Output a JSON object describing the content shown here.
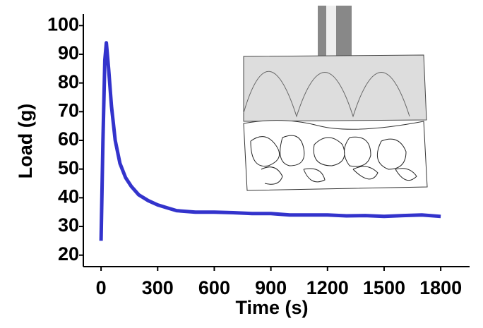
{
  "chart_data": {
    "type": "line",
    "x_label": "Time (s)",
    "y_label": "Load (g)",
    "x": [
      0,
      10,
      20,
      28,
      40,
      55,
      75,
      100,
      130,
      160,
      200,
      250,
      300,
      350,
      400,
      500,
      600,
      700,
      800,
      900,
      1000,
      1100,
      1200,
      1300,
      1400,
      1500,
      1600,
      1700,
      1800
    ],
    "series": [
      {
        "color": "#3333cc",
        "values": [
          25,
          60,
          88,
          94,
          85,
          72,
          60,
          52,
          47,
          44,
          41,
          39,
          37.5,
          36.5,
          35.5,
          35,
          35,
          34.8,
          34.5,
          34.5,
          34,
          34,
          34,
          33.7,
          33.8,
          33.5,
          33.8,
          34,
          33.5
        ]
      }
    ],
    "xlim": [
      -94,
      1953
    ],
    "ylim": [
      16,
      104
    ],
    "xticks": [
      0,
      300,
      600,
      900,
      1200,
      1500,
      1800
    ],
    "yticks": [
      20,
      30,
      40,
      50,
      60,
      70,
      80,
      90,
      100
    ]
  }
}
